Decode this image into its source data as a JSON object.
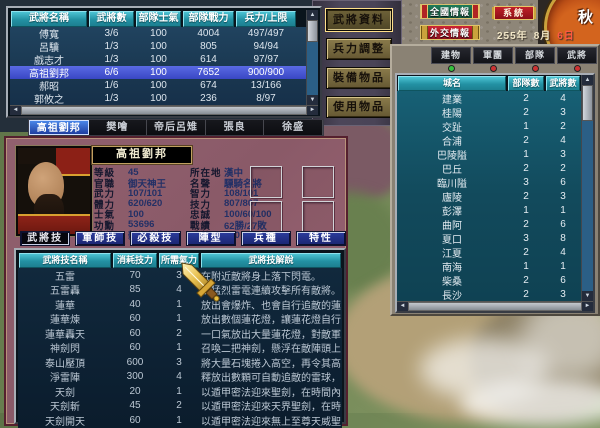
{
  "hud": {
    "national": "全國情報",
    "diplomacy": "外交情報",
    "system": "系統",
    "date": {
      "year": "255年",
      "month": "8月",
      "day": "6日"
    },
    "season": "秋"
  },
  "colors": {
    "header_teal": "#2391a3",
    "selected_row": "#3947c4",
    "gold_button": "#8a7b4b",
    "panel_mauve": "#8a5a68",
    "dot_active": "#35c13d",
    "dot_inactive": "#cc3333"
  },
  "unit_table": {
    "headers": [
      "武將名稱",
      "武將數",
      "部隊士氣",
      "部隊戰力",
      "兵力/上限"
    ],
    "rows": [
      {
        "name": "傅寬",
        "count": "3/6",
        "morale": "100",
        "power": "4004",
        "troops": "497/497",
        "selected": false
      },
      {
        "name": "呂驥",
        "count": "1/3",
        "morale": "100",
        "power": "805",
        "troops": "94/94",
        "selected": false
      },
      {
        "name": "戲志才",
        "count": "1/3",
        "morale": "100",
        "power": "614",
        "troops": "97/97",
        "selected": false
      },
      {
        "name": "高祖劉邦",
        "count": "6/6",
        "morale": "100",
        "power": "7652",
        "troops": "900/900",
        "selected": true
      },
      {
        "name": "郝昭",
        "count": "1/6",
        "morale": "100",
        "power": "674",
        "troops": "13/166",
        "selected": false
      },
      {
        "name": "郭攸之",
        "count": "1/3",
        "morale": "100",
        "power": "236",
        "troops": "8/97",
        "selected": false
      }
    ]
  },
  "action_panel": {
    "buttons": [
      {
        "label": "武將資料",
        "pressed": true
      },
      {
        "label": "兵力調整",
        "pressed": false
      },
      {
        "label": "裝備物品",
        "pressed": false
      },
      {
        "label": "使用物品",
        "pressed": false
      }
    ]
  },
  "city_panel": {
    "tabs": [
      "建物",
      "軍團",
      "部隊",
      "武將"
    ],
    "tab_dots": [
      "#35c13d",
      "#cc3333",
      "#cc3333",
      "#cc3333"
    ],
    "headers": [
      "城名",
      "部隊數",
      "武將數"
    ],
    "rows": [
      [
        "建業",
        "2",
        "4"
      ],
      [
        "桂陽",
        "2",
        "3"
      ],
      [
        "交趾",
        "1",
        "2"
      ],
      [
        "合浦",
        "2",
        "4"
      ],
      [
        "巴陵隘",
        "1",
        "3"
      ],
      [
        "巴丘",
        "2",
        "2"
      ],
      [
        "臨川隘",
        "3",
        "6"
      ],
      [
        "廬陵",
        "2",
        "3"
      ],
      [
        "彭澤",
        "1",
        "1"
      ],
      [
        "曲阿",
        "2",
        "6"
      ],
      [
        "夏口",
        "3",
        "8"
      ],
      [
        "江夏",
        "2",
        "4"
      ],
      [
        "南海",
        "1",
        "1"
      ],
      [
        "柴桑",
        "2",
        "6"
      ],
      [
        "長沙",
        "2",
        "3"
      ]
    ]
  },
  "general_tabs": [
    "高祖劉邦",
    "樊噲",
    "帝后呂雉",
    "張良",
    "徐盛"
  ],
  "general_detail": {
    "name": "高祖劉邦",
    "stats_left": [
      [
        "等級",
        "45"
      ],
      [
        "官職",
        "御天神王"
      ],
      [
        "武力",
        "107/101"
      ],
      [
        "體力",
        "620/620"
      ],
      [
        "士氣",
        "100"
      ],
      [
        "功勳",
        "53696"
      ],
      [
        "兵種",
        "親衛侍衛"
      ]
    ],
    "stats_right": [
      [
        "所在地",
        "漢中"
      ],
      [
        "名聲",
        "驃騎名將"
      ],
      [
        "智力",
        "108/101"
      ],
      [
        "技力",
        "807/807"
      ],
      [
        "忠誠",
        "100/60/100"
      ],
      [
        "戰績",
        "62勝/27敗"
      ],
      [
        "兵數",
        "200 / 200"
      ]
    ]
  },
  "skill_buttons": [
    {
      "label": "武將技",
      "active": true
    },
    {
      "label": "軍師技",
      "active": false
    },
    {
      "label": "必殺技",
      "active": false
    },
    {
      "label": "陣型",
      "active": false
    },
    {
      "label": "兵種",
      "active": false
    },
    {
      "label": "特性",
      "active": false
    }
  ],
  "skill_table": {
    "headers": [
      "武將技名稱",
      "消耗技力",
      "所需氣力",
      "武將技解說"
    ],
    "rows": [
      [
        "五雷",
        "70",
        "3",
        "在附近敵將身上落下閃電。"
      ],
      [
        "五雷轟",
        "85",
        "4",
        "以猛烈雷電連續攻擊所有敵將。"
      ],
      [
        "蓮華",
        "40",
        "1",
        "放出會爆炸、也會自行追敵的蓮花燈。"
      ],
      [
        "蓮華煉",
        "60",
        "1",
        "放出數個蓮花燈，讓蓮花燈自行去攻擊敵人。"
      ],
      [
        "蓮華轟天",
        "60",
        "2",
        "一口氣放出大量蓮花燈，對敵軍發動連續的爆擊。"
      ],
      [
        "神劍閃",
        "60",
        "1",
        "召喚二把神劍，懸浮在敵陣頭上，並同時落下攻擊。"
      ],
      [
        "泰山壓頂",
        "600",
        "3",
        "將大量石塊捲入高空，再令其高速落下攻擊敵軍。"
      ],
      [
        "淨雷陣",
        "300",
        "4",
        "釋放出數顆可自動追敵的雷球，將發連續的雷擊。"
      ],
      [
        "天劍",
        "20",
        "1",
        "以遁甲密法迎來聖劍，在時間內大幅增加統率。"
      ],
      [
        "天劍斬",
        "45",
        "2",
        "以遁甲密法迎來天界聖劍，在時間內大幅增加武力。"
      ],
      [
        "天劍開天",
        "60",
        "1",
        "以遁甲密法迎來無上至尊天威聖劍，在時間內大幅增加。"
      ]
    ]
  }
}
